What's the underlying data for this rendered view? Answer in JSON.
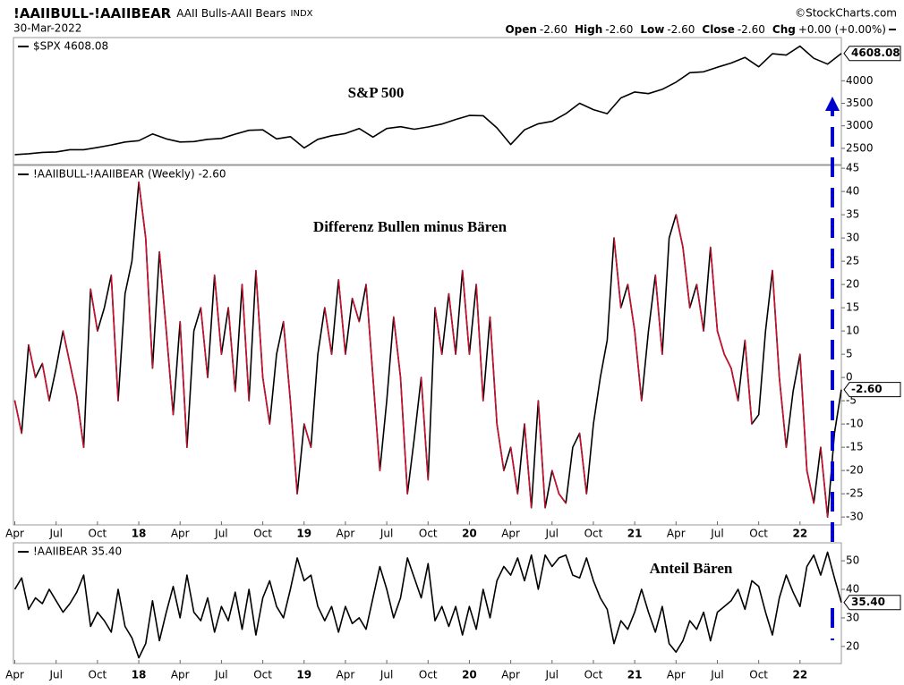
{
  "header": {
    "symbol": "!AAIIBULL-!AAIIBEAR",
    "description": "AAII Bulls-AAII Bears",
    "exchange": "INDX",
    "copyright": "©StockCharts.com",
    "date": "30-Mar-2022",
    "quote": [
      {
        "label": "Open",
        "value": "-2.60"
      },
      {
        "label": "High",
        "value": "-2.60"
      },
      {
        "label": "Low",
        "value": "-2.60"
      },
      {
        "label": "Close",
        "value": "-2.60"
      },
      {
        "label": "Chg",
        "value": "+0.00 (+0.00%)"
      }
    ]
  },
  "chart_data": [
    {
      "type": "line",
      "annotation": "S&P 500",
      "annotation_color": "#e8000b",
      "last_label": "4608.08",
      "x": [
        3,
        4,
        5,
        6,
        7,
        8,
        9,
        10,
        11,
        12,
        13,
        14,
        15,
        16,
        17,
        18,
        19,
        20,
        21,
        22,
        23,
        24,
        25,
        26,
        27,
        28,
        29,
        30,
        31,
        32,
        33,
        34,
        35,
        36,
        37,
        38,
        39,
        40,
        41,
        42,
        43,
        44,
        45,
        46,
        47,
        48,
        49,
        50,
        51,
        52,
        53,
        54,
        55,
        56,
        57,
        58,
        59,
        60,
        61,
        62,
        63
      ],
      "series": [
        {
          "name": "$SPX 4608.08",
          "color": "#000000",
          "values": [
            2360,
            2380,
            2410,
            2420,
            2470,
            2470,
            2520,
            2575,
            2640,
            2670,
            2820,
            2710,
            2640,
            2650,
            2700,
            2720,
            2815,
            2900,
            2910,
            2710,
            2760,
            2510,
            2700,
            2780,
            2830,
            2940,
            2750,
            2940,
            2980,
            2925,
            2975,
            3040,
            3140,
            3230,
            3225,
            2955,
            2585,
            2910,
            3045,
            3100,
            3270,
            3500,
            3360,
            3270,
            3620,
            3750,
            3715,
            3810,
            3970,
            4180,
            4200,
            4300,
            4395,
            4520,
            4310,
            4600,
            4570,
            4770,
            4500,
            4370,
            4608.08
          ]
        }
      ],
      "xlim": [
        2.9,
        63
      ],
      "ylim": [
        2140,
        4960
      ],
      "yticks": [
        2500,
        3000,
        3500,
        4000
      ],
      "grid": false
    },
    {
      "type": "line",
      "annotation": "Differenz Bullen minus Bären",
      "annotation_color": "#e8000b",
      "last_label": "-2.60",
      "down_color": "#c8102e",
      "x": [
        3,
        3.5,
        4,
        4.5,
        5,
        5.5,
        6,
        6.5,
        7,
        7.5,
        8,
        8.5,
        9,
        9.5,
        10,
        10.5,
        11,
        11.5,
        12,
        12.5,
        13,
        13.5,
        14,
        14.5,
        15,
        15.5,
        16,
        16.5,
        17,
        17.5,
        18,
        18.5,
        19,
        19.5,
        20,
        20.5,
        21,
        21.5,
        22,
        22.5,
        23,
        23.5,
        24,
        24.5,
        25,
        25.5,
        26,
        26.5,
        27,
        27.5,
        28,
        28.5,
        29,
        29.5,
        30,
        30.5,
        31,
        31.5,
        32,
        32.5,
        33,
        33.5,
        34,
        34.5,
        35,
        35.5,
        36,
        36.5,
        37,
        37.5,
        38,
        38.5,
        39,
        39.5,
        40,
        40.5,
        41,
        41.5,
        42,
        42.5,
        43,
        43.5,
        44,
        44.5,
        45,
        45.5,
        46,
        46.5,
        47,
        47.5,
        48,
        48.5,
        49,
        49.5,
        50,
        50.5,
        51,
        51.5,
        52,
        52.5,
        53,
        53.5,
        54,
        54.5,
        55,
        55.5,
        56,
        56.5,
        57,
        57.5,
        58,
        58.5,
        59,
        59.5,
        60,
        60.5,
        61,
        61.5,
        62,
        62.5,
        63
      ],
      "series": [
        {
          "name": "!AAIIBULL-!AAIIBEAR (Weekly) -2.60",
          "color": "#000000",
          "values": [
            -5,
            -12,
            7,
            0,
            3,
            -5,
            2,
            10,
            3,
            -4,
            -15,
            19,
            10,
            15,
            22,
            -5,
            18,
            25,
            42,
            30,
            2,
            27,
            10,
            -8,
            12,
            -15,
            10,
            15,
            0,
            22,
            5,
            15,
            -3,
            20,
            -5,
            23,
            0,
            -10,
            5,
            12,
            -5,
            -25,
            -10,
            -15,
            5,
            15,
            5,
            21,
            5,
            17,
            12,
            20,
            0,
            -20,
            -5,
            13,
            0,
            -25,
            -13,
            0,
            -22,
            15,
            5,
            18,
            5,
            23,
            5,
            20,
            -5,
            13,
            -10,
            -20,
            -15,
            -25,
            -10,
            -28,
            -5,
            -28,
            -20,
            -25,
            -27,
            -15,
            -12,
            -25,
            -10,
            0,
            8,
            30,
            15,
            20,
            10,
            -5,
            10,
            22,
            5,
            30,
            35,
            28,
            15,
            20,
            10,
            28,
            10,
            5,
            2,
            -5,
            8,
            -10,
            -8,
            10,
            23,
            0,
            -15,
            -3,
            5,
            -20,
            -27,
            -15,
            -30,
            -12,
            -2.6
          ]
        }
      ],
      "xlim": [
        2.9,
        63
      ],
      "ylim": [
        -31.7,
        45.6
      ],
      "yticks": [
        45,
        40,
        35,
        30,
        25,
        20,
        15,
        10,
        5,
        0,
        -5,
        -10,
        -15,
        -20,
        -25,
        -30
      ],
      "xticks": [
        {
          "value": 3,
          "label": "Apr"
        },
        {
          "value": 6,
          "label": "Jul"
        },
        {
          "value": 9,
          "label": "Oct"
        },
        {
          "value": 12,
          "label": "18"
        },
        {
          "value": 15,
          "label": "Apr"
        },
        {
          "value": 18,
          "label": "Jul"
        },
        {
          "value": 21,
          "label": "Oct"
        },
        {
          "value": 24,
          "label": "19"
        },
        {
          "value": 27,
          "label": "Apr"
        },
        {
          "value": 30,
          "label": "Jul"
        },
        {
          "value": 33,
          "label": "Oct"
        },
        {
          "value": 36,
          "label": "20"
        },
        {
          "value": 39,
          "label": "Apr"
        },
        {
          "value": 42,
          "label": "Jul"
        },
        {
          "value": 45,
          "label": "Oct"
        },
        {
          "value": 48,
          "label": "21"
        },
        {
          "value": 51,
          "label": "Apr"
        },
        {
          "value": 54,
          "label": "Jul"
        },
        {
          "value": 57,
          "label": "Oct"
        },
        {
          "value": 60,
          "label": "22"
        }
      ],
      "grid": false
    },
    {
      "type": "line",
      "annotation": "Anteil Bären",
      "annotation_color": "#e8000b",
      "last_label": "35.40",
      "x": [
        3,
        3.5,
        4,
        4.5,
        5,
        5.5,
        6,
        6.5,
        7,
        7.5,
        8,
        8.5,
        9,
        9.5,
        10,
        10.5,
        11,
        11.5,
        12,
        12.5,
        13,
        13.5,
        14,
        14.5,
        15,
        15.5,
        16,
        16.5,
        17,
        17.5,
        18,
        18.5,
        19,
        19.5,
        20,
        20.5,
        21,
        21.5,
        22,
        22.5,
        23,
        23.5,
        24,
        24.5,
        25,
        25.5,
        26,
        26.5,
        27,
        27.5,
        28,
        28.5,
        29,
        29.5,
        30,
        30.5,
        31,
        31.5,
        32,
        32.5,
        33,
        33.5,
        34,
        34.5,
        35,
        35.5,
        36,
        36.5,
        37,
        37.5,
        38,
        38.5,
        39,
        39.5,
        40,
        40.5,
        41,
        41.5,
        42,
        42.5,
        43,
        43.5,
        44,
        44.5,
        45,
        45.5,
        46,
        46.5,
        47,
        47.5,
        48,
        48.5,
        49,
        49.5,
        50,
        50.5,
        51,
        51.5,
        52,
        52.5,
        53,
        53.5,
        54,
        54.5,
        55,
        55.5,
        56,
        56.5,
        57,
        57.5,
        58,
        58.5,
        59,
        59.5,
        60,
        60.5,
        61,
        61.5,
        62,
        62.5,
        63
      ],
      "series": [
        {
          "name": "!AAIIBEAR 35.40",
          "color": "#000000",
          "values": [
            40,
            44,
            33,
            37,
            35,
            40,
            36,
            32,
            35,
            39,
            45,
            27,
            32,
            29,
            25,
            40,
            27,
            23,
            16,
            21,
            36,
            22,
            32,
            41,
            30,
            45,
            32,
            29,
            37,
            25,
            34,
            29,
            39,
            26,
            40,
            24,
            37,
            43,
            34,
            30,
            40,
            51,
            43,
            45,
            34,
            29,
            34,
            25,
            34,
            28,
            30,
            26,
            37,
            48,
            40,
            30,
            37,
            51,
            44,
            37,
            49,
            29,
            34,
            27,
            34,
            24,
            34,
            26,
            40,
            30,
            43,
            48,
            45,
            51,
            43,
            52,
            40,
            52,
            48,
            51,
            52,
            45,
            44,
            51,
            43,
            37,
            33,
            21,
            29,
            26,
            32,
            40,
            32,
            25,
            34,
            21,
            18,
            22,
            29,
            26,
            32,
            22,
            32,
            34,
            36,
            40,
            33,
            43,
            41,
            32,
            24,
            37,
            45,
            39,
            34,
            48,
            52,
            45,
            53,
            44,
            35.4
          ]
        }
      ],
      "xlim": [
        2.9,
        63
      ],
      "ylim": [
        14,
        56.3
      ],
      "yticks": [
        20,
        30,
        40,
        50
      ],
      "xticks": [
        {
          "value": 3,
          "label": "Apr"
        },
        {
          "value": 6,
          "label": "Jul"
        },
        {
          "value": 9,
          "label": "Oct"
        },
        {
          "value": 12,
          "label": "18"
        },
        {
          "value": 15,
          "label": "Apr"
        },
        {
          "value": 18,
          "label": "Jul"
        },
        {
          "value": 21,
          "label": "Oct"
        },
        {
          "value": 24,
          "label": "19"
        },
        {
          "value": 27,
          "label": "Apr"
        },
        {
          "value": 30,
          "label": "Jul"
        },
        {
          "value": 33,
          "label": "Oct"
        },
        {
          "value": 36,
          "label": "20"
        },
        {
          "value": 39,
          "label": "Apr"
        },
        {
          "value": 42,
          "label": "Jul"
        },
        {
          "value": 45,
          "label": "Oct"
        },
        {
          "value": 48,
          "label": "21"
        },
        {
          "value": 51,
          "label": "Apr"
        },
        {
          "value": 54,
          "label": "Jul"
        },
        {
          "value": 57,
          "label": "Oct"
        },
        {
          "value": 60,
          "label": "22"
        }
      ],
      "grid": false
    }
  ]
}
